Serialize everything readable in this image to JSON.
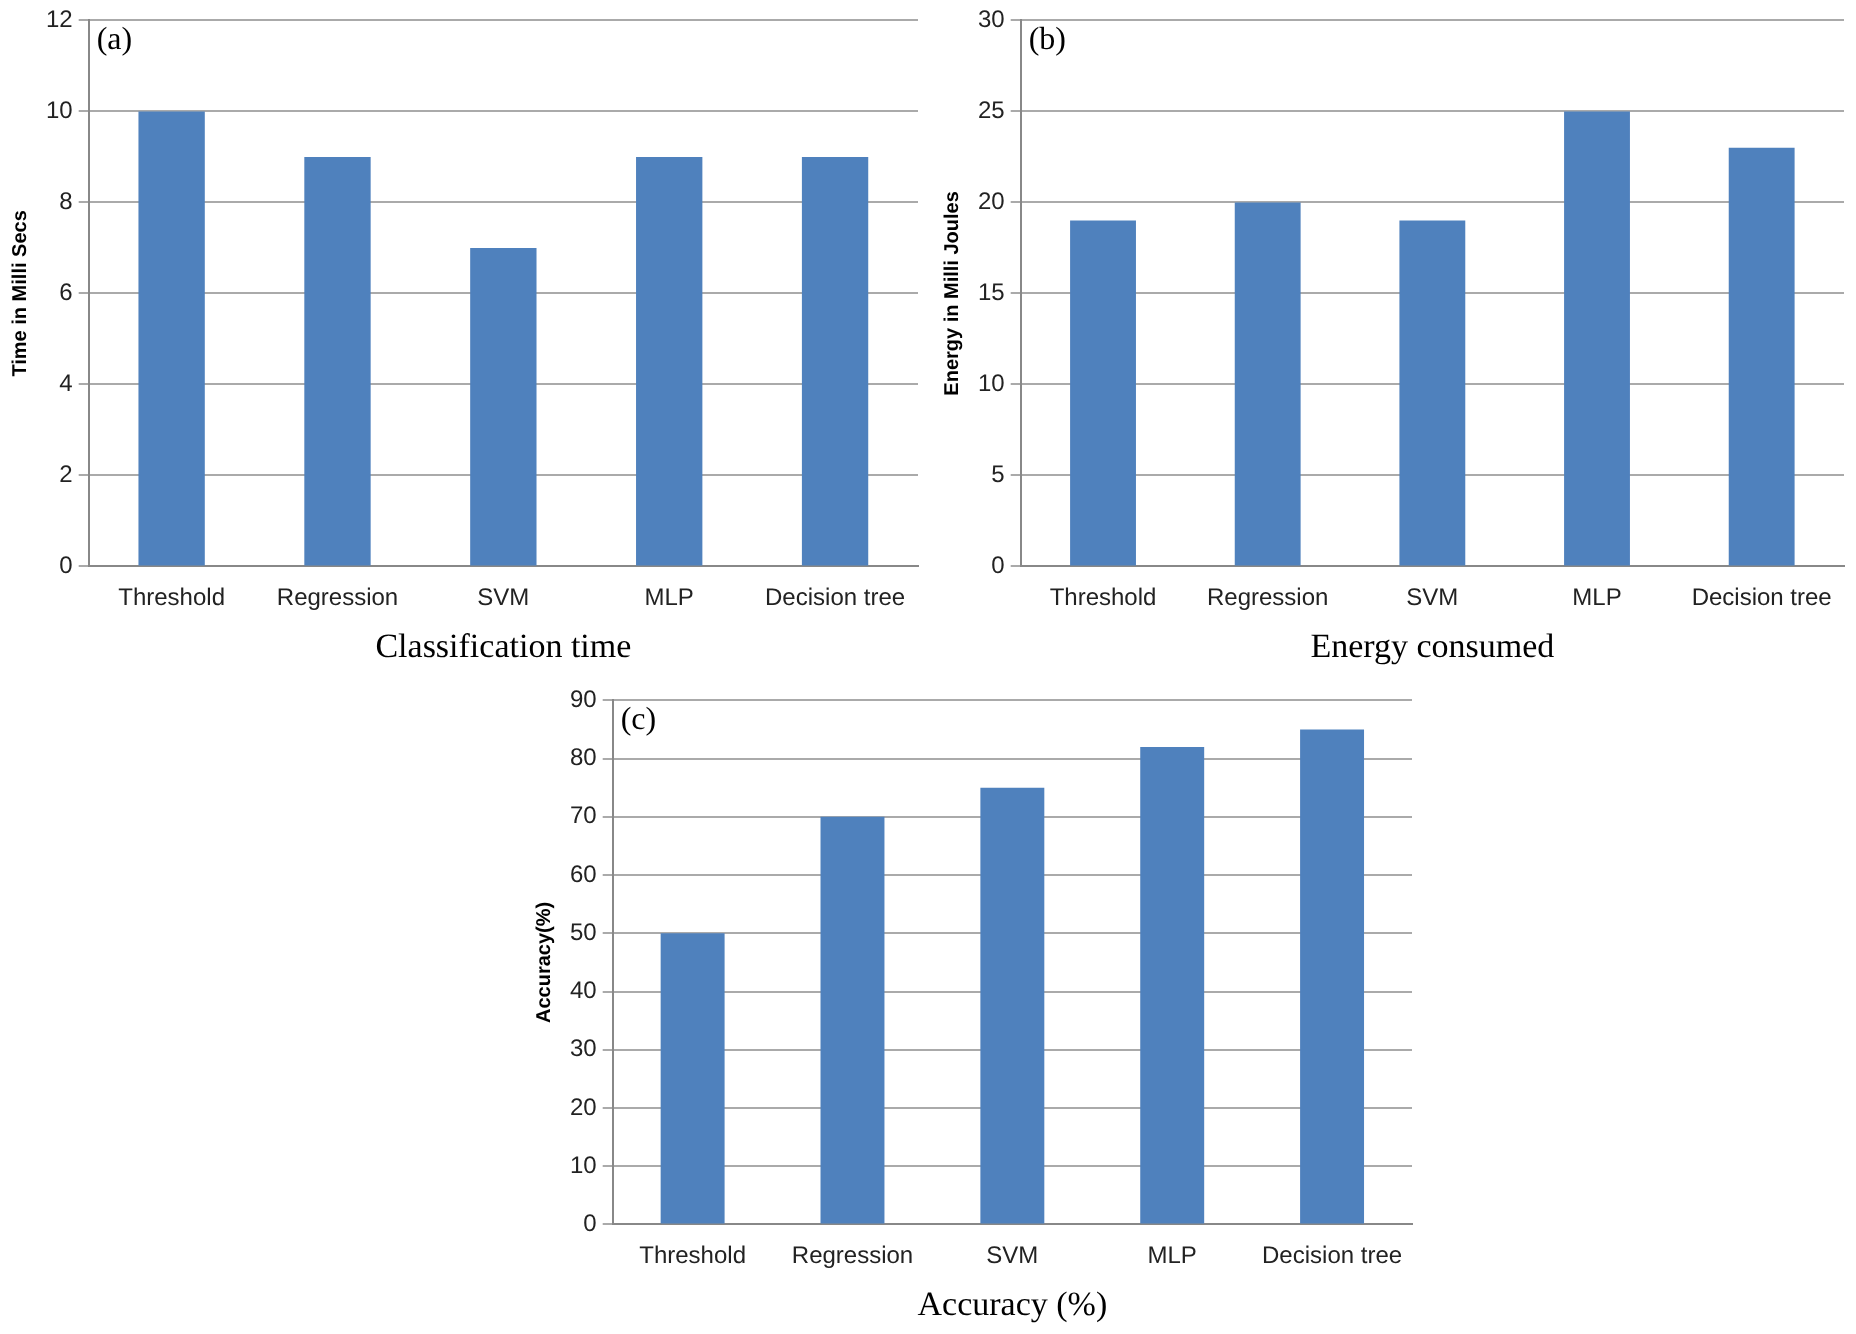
{
  "chart_data": [
    {
      "type": "bar",
      "xlabel": "Classification time",
      "ylabel": "Time in Milli Secs",
      "annotations": [
        "(a)"
      ],
      "categories": [
        "Threshold",
        "Regression",
        "SVM",
        "MLP",
        "Decision tree"
      ],
      "values": [
        10,
        9,
        7,
        9,
        9
      ],
      "color": "#4f81bd",
      "ylim": [
        0,
        12
      ],
      "yticks": [
        0,
        2,
        4,
        6,
        8,
        10,
        12
      ],
      "grid": "y"
    },
    {
      "type": "bar",
      "xlabel": "Energy consumed",
      "ylabel": "Energy in Milli Joules",
      "annotations": [
        "(b)"
      ],
      "categories": [
        "Threshold",
        "Regression",
        "SVM",
        "MLP",
        "Decision tree"
      ],
      "values": [
        19,
        20,
        19,
        25,
        23
      ],
      "color": "#4f81bd",
      "ylim": [
        0,
        30
      ],
      "yticks": [
        0,
        5,
        10,
        15,
        20,
        25,
        30
      ],
      "grid": "y"
    },
    {
      "type": "bar",
      "xlabel": "Accuracy (%)",
      "ylabel": "Accuracy(%)",
      "annotations": [
        "(c)"
      ],
      "categories": [
        "Threshold",
        "Regression",
        "SVM",
        "MLP",
        "Decision tree"
      ],
      "values": [
        50,
        70,
        75,
        82,
        85
      ],
      "color": "#4f81bd",
      "ylim": [
        0,
        90
      ],
      "yticks": [
        0,
        10,
        20,
        30,
        40,
        50,
        60,
        70,
        80,
        90
      ],
      "grid": "y"
    }
  ]
}
